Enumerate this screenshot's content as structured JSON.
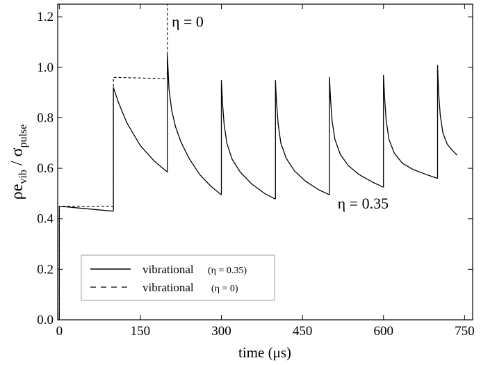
{
  "chart_data": {
    "type": "line",
    "xlabel": "time (μs)",
    "ylabel": {
      "base1": "ρe",
      "sub1": "vib",
      "sep": " / ",
      "base2": "σ",
      "sub2": "pulse"
    },
    "xlim": [
      -3,
      765
    ],
    "ylim": [
      0,
      1.25
    ],
    "xticks": [
      0,
      150,
      300,
      450,
      600,
      750
    ],
    "xtick_labels": [
      "0",
      "150",
      "300",
      "450",
      "600",
      "750"
    ],
    "yticks": [
      0,
      0.2,
      0.4,
      0.6,
      0.8,
      1.0,
      1.2
    ],
    "ytick_labels": [
      "0.0",
      "0.2",
      "0.4",
      "0.6",
      "0.8",
      "1.0",
      "1.2"
    ],
    "grid": false,
    "series": [
      {
        "name": "vibrational",
        "legend_param": "(η = 0.35)",
        "style": "solid",
        "color": "#000000",
        "segments": [
          {
            "x": [
              0,
              0,
              100
            ],
            "y": [
              0,
              0.45,
              0.43
            ]
          },
          {
            "x": [
              100,
              100,
              110,
              125,
              150,
              175,
              200
            ],
            "y": [
              0.43,
              0.92,
              0.858,
              0.78,
              0.69,
              0.63,
              0.585
            ]
          },
          {
            "x": [
              200,
              200,
              203,
              208,
              215,
              225,
              240,
              260,
              280,
              300
            ],
            "y": [
              0.585,
              1.05,
              0.915,
              0.83,
              0.765,
              0.705,
              0.64,
              0.575,
              0.53,
              0.495
            ]
          },
          {
            "x": [
              300,
              300,
              302,
              305,
              310,
              320,
              335,
              355,
              380,
              400
            ],
            "y": [
              0.495,
              0.948,
              0.86,
              0.775,
              0.7,
              0.635,
              0.585,
              0.54,
              0.5,
              0.478
            ]
          },
          {
            "x": [
              400,
              400,
              402,
              405,
              410,
              420,
              435,
              455,
              480,
              500
            ],
            "y": [
              0.478,
              0.948,
              0.86,
              0.775,
              0.7,
              0.64,
              0.59,
              0.55,
              0.515,
              0.495
            ]
          },
          {
            "x": [
              500,
              500,
              502,
              505,
              510,
              520,
              535,
              555,
              580,
              600
            ],
            "y": [
              0.495,
              0.96,
              0.87,
              0.785,
              0.715,
              0.655,
              0.61,
              0.575,
              0.545,
              0.525
            ]
          },
          {
            "x": [
              600,
              600,
              602,
              605,
              610,
              620,
              635,
              655,
              680,
              700
            ],
            "y": [
              0.525,
              0.968,
              0.88,
              0.79,
              0.715,
              0.66,
              0.62,
              0.595,
              0.575,
              0.56
            ]
          },
          {
            "x": [
              700,
              700,
              702,
              705,
              710,
              718,
              728,
              736
            ],
            "y": [
              0.56,
              1.008,
              0.9,
              0.81,
              0.74,
              0.695,
              0.67,
              0.652
            ]
          }
        ]
      },
      {
        "name": "vibrational",
        "legend_param": "(η = 0)",
        "style": "dashed",
        "color": "#000000",
        "segments": [
          {
            "x": [
              0,
              0,
              100,
              100,
              200,
              200
            ],
            "y": [
              0,
              0.45,
              0.45,
              0.96,
              0.955,
              1.3
            ]
          }
        ]
      }
    ],
    "annotations": [
      {
        "text": "η = 0",
        "x": 208,
        "y": 1.16
      },
      {
        "text": "η = 0.35",
        "x": 515,
        "y": 0.44
      }
    ],
    "legend_position": "lower-left"
  }
}
